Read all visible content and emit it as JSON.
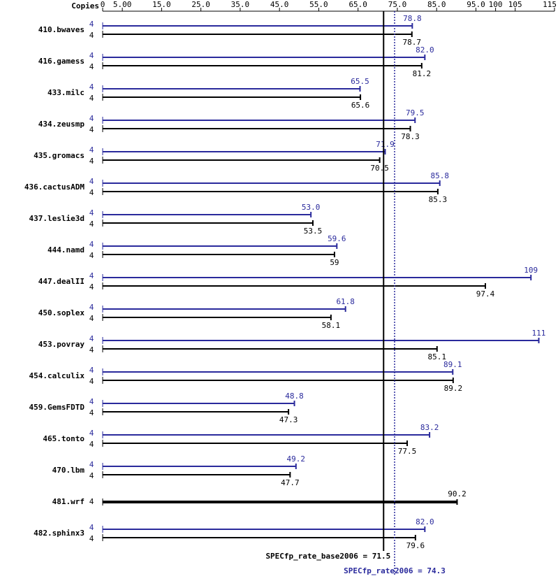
{
  "chart_data": {
    "type": "bar",
    "orientation": "horizontal",
    "copies_label": "Copies",
    "categories": [
      "410.bwaves",
      "416.gamess",
      "433.milc",
      "434.zeusmp",
      "435.gromacs",
      "436.cactusADM",
      "437.leslie3d",
      "444.namd",
      "447.dealII",
      "450.soplex",
      "453.povray",
      "454.calculix",
      "459.GemsFDTD",
      "465.tonto",
      "470.lbm",
      "481.wrf",
      "482.sphinx3"
    ],
    "peak": {
      "color": "#2a2a9c",
      "copies": [
        4,
        4,
        4,
        4,
        4,
        4,
        4,
        4,
        4,
        4,
        4,
        4,
        4,
        4,
        4,
        null,
        4
      ],
      "values": [
        78.8,
        82.0,
        65.5,
        79.5,
        71.9,
        85.8,
        53.0,
        59.6,
        109,
        61.8,
        111,
        89.1,
        48.8,
        83.2,
        49.2,
        null,
        82.0
      ],
      "value_labels": [
        "78.8",
        "82.0",
        "65.5",
        "79.5",
        "71.9",
        "85.8",
        "53.0",
        "59.6",
        "109",
        "61.8",
        "111",
        "89.1",
        "48.8",
        "83.2",
        "49.2",
        null,
        "82.0"
      ]
    },
    "base": {
      "color": "#000000",
      "copies": [
        4,
        4,
        4,
        4,
        4,
        4,
        4,
        4,
        4,
        4,
        4,
        4,
        4,
        4,
        4,
        4,
        4
      ],
      "values": [
        78.7,
        81.2,
        65.6,
        78.3,
        70.5,
        85.3,
        53.5,
        59.0,
        97.4,
        58.1,
        85.1,
        89.2,
        47.3,
        77.5,
        47.7,
        90.2,
        79.6
      ]
    },
    "xlim": [
      0,
      115
    ],
    "xticks": [
      0,
      {
        "value": 5,
        "label": "5.00"
      },
      {
        "value": 15,
        "label": "15.0"
      },
      {
        "value": 25,
        "label": "25.0"
      },
      {
        "value": 35,
        "label": "35.0"
      },
      {
        "value": 45,
        "label": "45.0"
      },
      {
        "value": 55,
        "label": "55.0"
      },
      {
        "value": 65,
        "label": "65.0"
      },
      {
        "value": 75,
        "label": "75.0"
      },
      {
        "value": 85,
        "label": "85.0"
      },
      {
        "value": 95,
        "label": "95.0"
      },
      100,
      105,
      115
    ],
    "summary": [
      {
        "label": "SPECfp_rate_base2006 = 71.5",
        "value": 71.5,
        "color": "#000000",
        "dotted": false
      },
      {
        "label": "SPECfp_rate2006 = 74.3",
        "value": 74.3,
        "color": "#2a2a9c",
        "dotted": true
      }
    ]
  }
}
